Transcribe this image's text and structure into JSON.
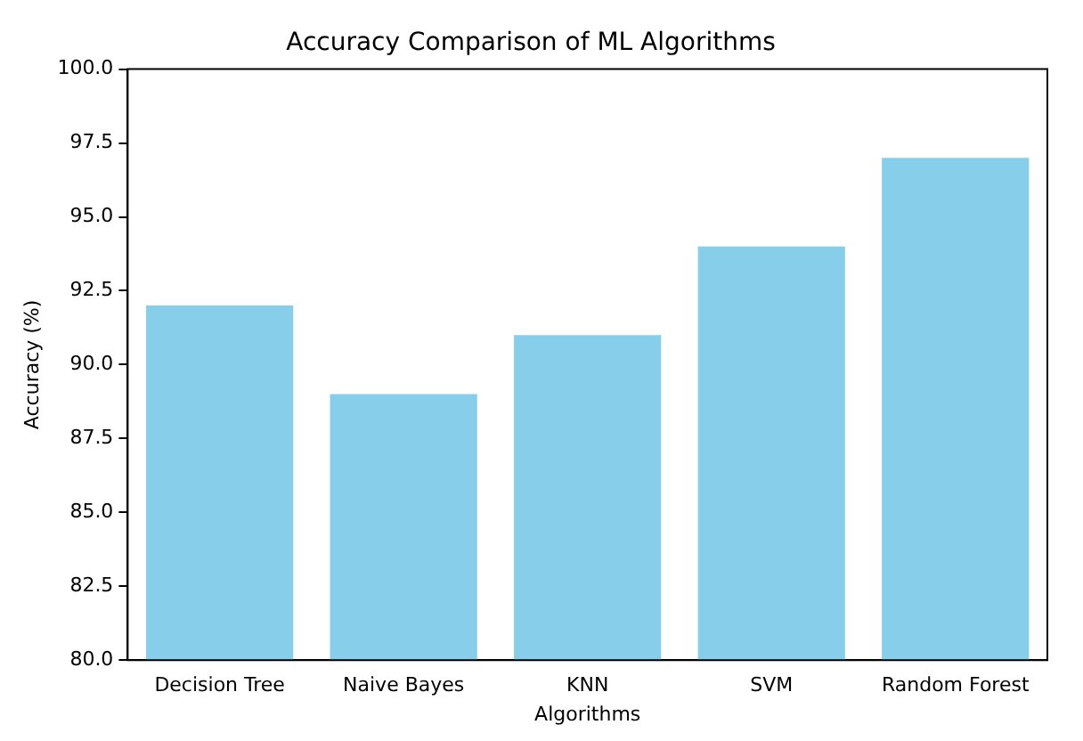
{
  "chart_data": {
    "type": "bar",
    "title": "Accuracy Comparison of ML Algorithms",
    "xlabel": "Algorithms",
    "ylabel": "Accuracy (%)",
    "categories": [
      "Decision Tree",
      "Naive Bayes",
      "KNN",
      "SVM",
      "Random Forest"
    ],
    "values": [
      92,
      89,
      91,
      94,
      97
    ],
    "color": "#87ceeb",
    "ylim": [
      80,
      100
    ],
    "yticks": [
      {
        "value": 80,
        "label": "80.0"
      },
      {
        "value": 82.5,
        "label": "82.5"
      },
      {
        "value": 85,
        "label": "85.0"
      },
      {
        "value": 87.5,
        "label": "87.5"
      },
      {
        "value": 90,
        "label": "90.0"
      },
      {
        "value": 92.5,
        "label": "92.5"
      },
      {
        "value": 95,
        "label": "95.0"
      },
      {
        "value": 97.5,
        "label": "97.5"
      },
      {
        "value": 100,
        "label": "100.0"
      }
    ],
    "grid": false,
    "legend": false
  }
}
